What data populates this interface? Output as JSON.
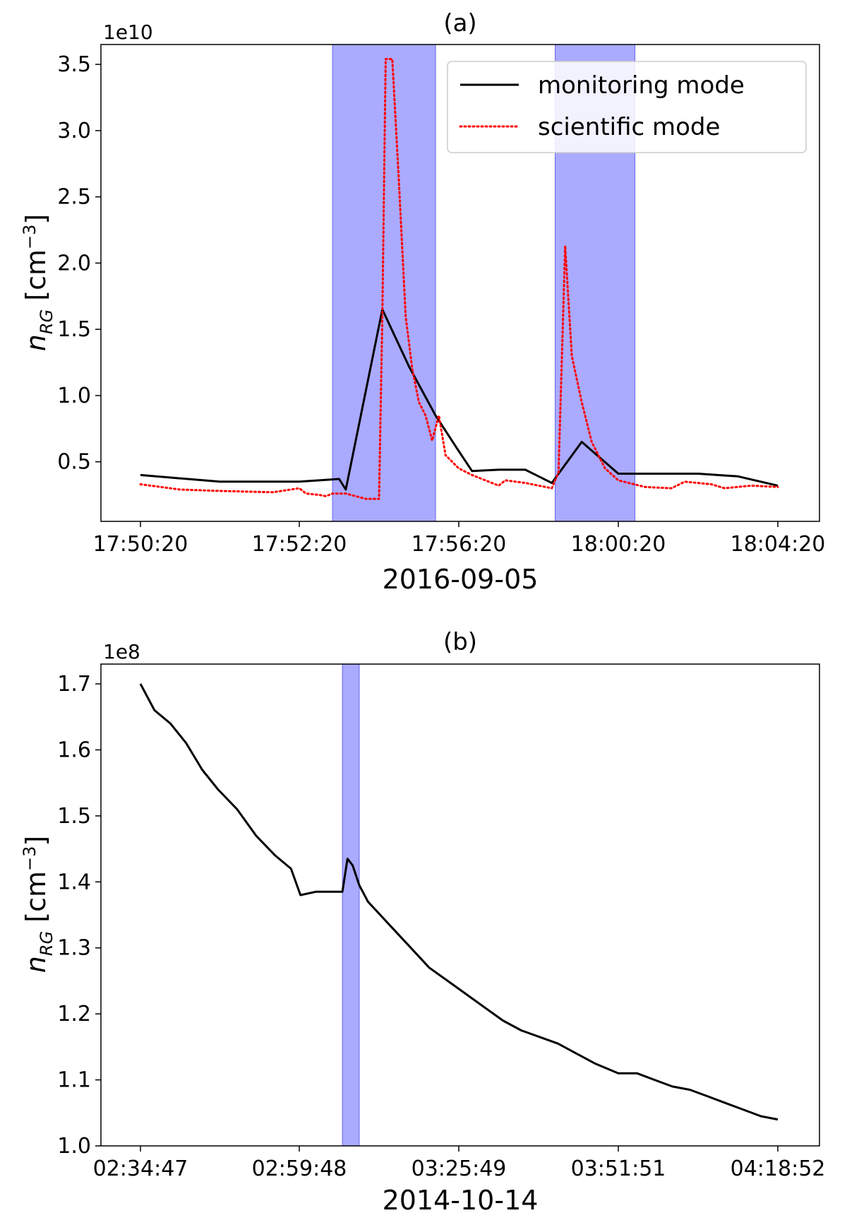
{
  "chart_data": [
    {
      "type": "line",
      "title": "(a)",
      "xlabel": "2016-09-05",
      "ylabel": "n_RG  [cm^-3]",
      "ylabel_parts": {
        "symbol": "n",
        "subscript": "RG",
        "unit_open": "[cm",
        "exponent": "−3",
        "unit_close": "]"
      },
      "y_offset_text": "1e10",
      "x_unit": "time of day",
      "x_ticks": [
        "17:50:20",
        "17:52:20",
        "17:56:20",
        "18:00:20",
        "18:04:20"
      ],
      "y_ticks": [
        "0.5",
        "1.0",
        "1.5",
        "2.0",
        "2.5",
        "3.0",
        "3.5"
      ],
      "xlim": [
        "17:50:20",
        "18:04:20"
      ],
      "ylim": [
        0.05,
        3.65
      ],
      "legend_position": "top-right",
      "shaded_regions": [
        {
          "start": "17:53:10",
          "end": "17:55:45",
          "color": "#aaaaff"
        },
        {
          "start": "17:58:45",
          "end": "18:00:45",
          "color": "#aaaaff"
        }
      ],
      "series": [
        {
          "name": "monitoring mode",
          "color": "#000000",
          "style": "solid",
          "x": [
            "17:50:20",
            "17:51:20",
            "17:52:20",
            "17:53:20",
            "17:53:30",
            "17:54:25",
            "17:55:05",
            "17:55:45",
            "17:56:20",
            "17:56:40",
            "17:57:20",
            "17:58:00",
            "17:58:40",
            "17:59:25",
            "18:00:20",
            "18:01:40",
            "18:02:20",
            "18:03:20",
            "18:04:20"
          ],
          "values": [
            0.4,
            0.35,
            0.35,
            0.37,
            0.29,
            1.65,
            1.22,
            0.85,
            0.58,
            0.43,
            0.44,
            0.44,
            0.34,
            0.65,
            0.41,
            0.41,
            0.41,
            0.39,
            0.32
          ]
        },
        {
          "name": "scientific mode",
          "color": "#ff0000",
          "style": "dotted",
          "x": [
            "17:50:20",
            "17:50:50",
            "17:51:20",
            "17:52:00",
            "17:52:20",
            "17:52:30",
            "17:52:50",
            "17:53:00",
            "17:53:10",
            "17:53:30",
            "17:54:00",
            "17:54:20",
            "17:54:25",
            "17:54:30",
            "17:54:40",
            "17:54:50",
            "17:55:00",
            "17:55:10",
            "17:55:20",
            "17:55:30",
            "17:55:40",
            "17:55:50",
            "17:56:00",
            "17:56:20",
            "17:56:40",
            "17:57:00",
            "17:57:20",
            "17:57:30",
            "17:58:00",
            "17:58:40",
            "17:58:50",
            "17:59:00",
            "17:59:10",
            "17:59:25",
            "17:59:40",
            "18:00:00",
            "18:00:20",
            "18:01:00",
            "18:01:40",
            "18:02:00",
            "18:02:40",
            "18:03:00",
            "18:03:40",
            "18:04:20"
          ],
          "values": [
            0.33,
            0.29,
            0.28,
            0.27,
            0.3,
            0.26,
            0.25,
            0.24,
            0.26,
            0.26,
            0.22,
            0.22,
            1.6,
            3.54,
            3.54,
            2.6,
            1.6,
            1.2,
            0.95,
            0.85,
            0.66,
            0.85,
            0.55,
            0.45,
            0.4,
            0.36,
            0.32,
            0.36,
            0.34,
            0.3,
            0.42,
            2.13,
            1.3,
            0.95,
            0.65,
            0.45,
            0.36,
            0.31,
            0.3,
            0.35,
            0.33,
            0.3,
            0.32,
            0.31
          ]
        }
      ]
    },
    {
      "type": "line",
      "title": "(b)",
      "xlabel": "2014-10-14",
      "ylabel": "n_RG  [cm^-3]",
      "ylabel_parts": {
        "symbol": "n",
        "subscript": "RG",
        "unit_open": "[cm",
        "exponent": "−3",
        "unit_close": "]"
      },
      "y_offset_text": "1e8",
      "x_unit": "time of day",
      "x_ticks": [
        "02:34:47",
        "02:59:48",
        "03:25:49",
        "03:51:51",
        "04:18:52"
      ],
      "y_ticks": [
        "1.0",
        "1.1",
        "1.2",
        "1.3",
        "1.4",
        "1.5",
        "1.6",
        "1.7"
      ],
      "xlim": [
        "02:34:47",
        "04:18:52"
      ],
      "ylim": [
        1.0,
        1.73
      ],
      "shaded_regions": [
        {
          "start": "03:06:50",
          "end": "03:09:35",
          "color": "#aaaaff"
        }
      ],
      "series": [
        {
          "name": "",
          "color": "#000000",
          "style": "solid",
          "x": [
            "02:34:47",
            "02:37:00",
            "02:39:30",
            "02:42:00",
            "02:44:30",
            "02:47:00",
            "02:50:00",
            "02:53:00",
            "02:56:00",
            "02:58:30",
            "03:00:00",
            "03:02:30",
            "03:05:00",
            "03:06:50",
            "03:07:40",
            "03:08:30",
            "03:09:35",
            "03:11:00",
            "03:13:00",
            "03:15:00",
            "03:18:00",
            "03:21:00",
            "03:24:00",
            "03:27:00",
            "03:30:00",
            "03:33:00",
            "03:36:00",
            "03:39:00",
            "03:42:00",
            "03:45:00",
            "03:48:00",
            "03:51:51",
            "03:55:00",
            "03:58:00",
            "04:01:00",
            "04:04:00",
            "04:07:00",
            "04:10:00",
            "04:13:00",
            "04:16:00",
            "04:18:52"
          ],
          "values": [
            1.7,
            1.66,
            1.64,
            1.61,
            1.57,
            1.54,
            1.51,
            1.47,
            1.44,
            1.42,
            1.38,
            1.385,
            1.385,
            1.385,
            1.435,
            1.425,
            1.395,
            1.37,
            1.35,
            1.33,
            1.3,
            1.27,
            1.25,
            1.23,
            1.21,
            1.19,
            1.175,
            1.165,
            1.155,
            1.14,
            1.125,
            1.11,
            1.11,
            1.1,
            1.09,
            1.085,
            1.075,
            1.065,
            1.055,
            1.045,
            1.04
          ]
        }
      ]
    }
  ]
}
